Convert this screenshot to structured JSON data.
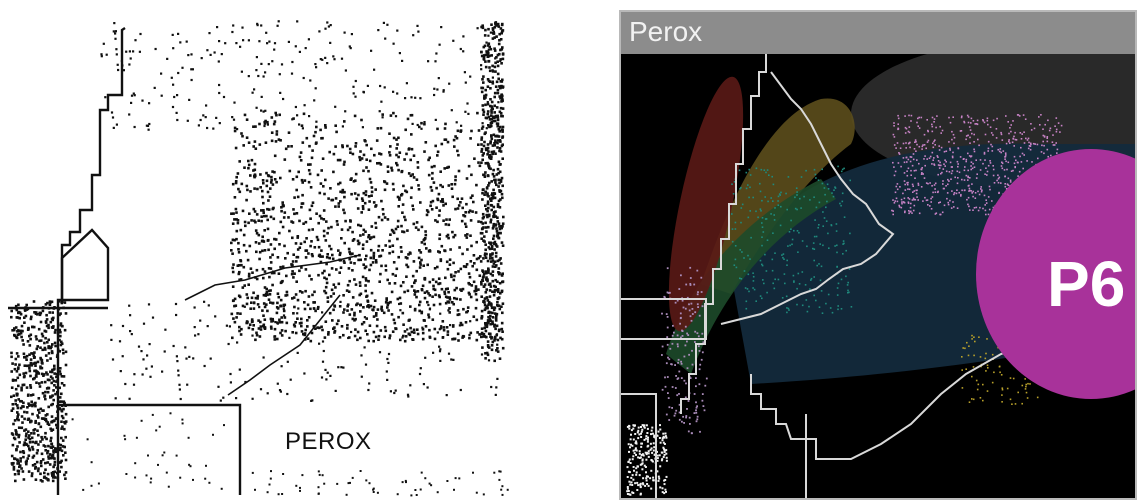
{
  "left_panel": {
    "label": "PEROX"
  },
  "right_panel": {
    "title": "Perox",
    "cluster_label": "P6",
    "colors": {
      "background": "#000000",
      "title_bar": "#8c8c8c",
      "p6_cluster": "#a8329a",
      "red_region": "#5a1a16",
      "yellow_region": "#5c4e1c",
      "blue_region": "#132a3c",
      "gray_region": "#2e2e2e",
      "pink_points": "#c883c6",
      "teal_points": "#1f8a7d",
      "yellow_points": "#b8a12a",
      "gate_lines": "#d9d9d9"
    }
  }
}
